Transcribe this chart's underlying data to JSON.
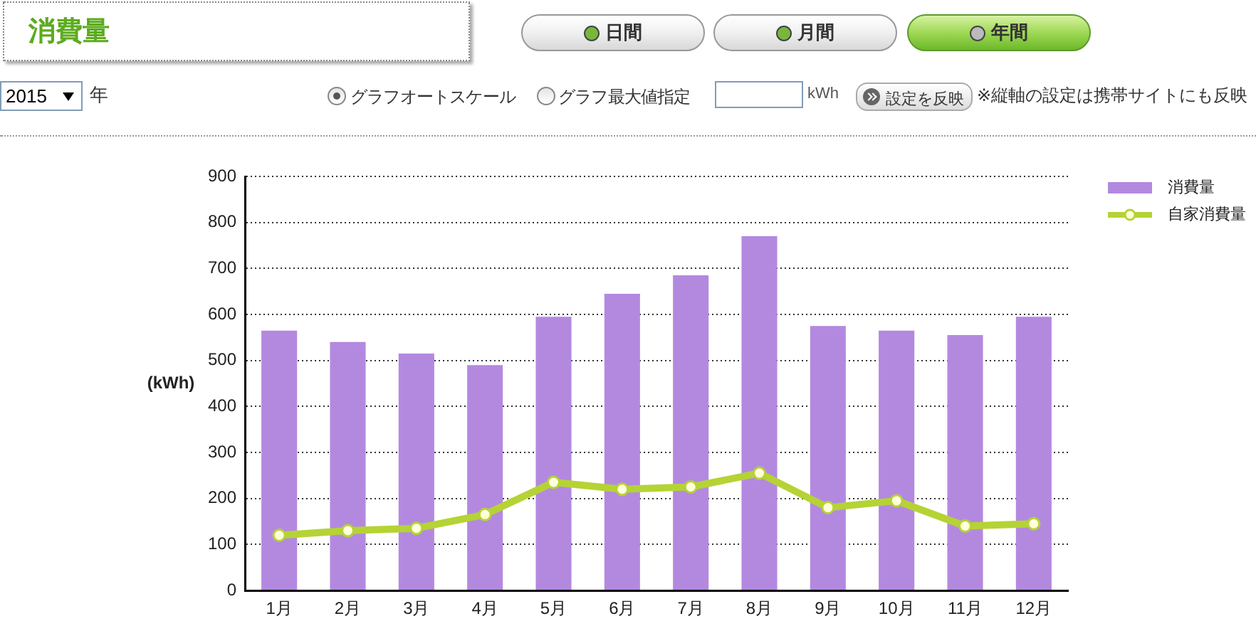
{
  "chart_data": {
    "type": "bar",
    "title": "消費量",
    "ylabel": "(kWh)",
    "categories": [
      "1月",
      "2月",
      "3月",
      "4月",
      "5月",
      "6月",
      "7月",
      "8月",
      "9月",
      "10月",
      "11月",
      "12月"
    ],
    "series": [
      {
        "name": "消費量",
        "color": "#b389e0",
        "values": [
          565,
          540,
          515,
          490,
          595,
          645,
          685,
          770,
          575,
          565,
          555,
          595
        ]
      },
      {
        "name": "自家消費量",
        "type": "line",
        "color": "#b5d334",
        "values": [
          120,
          130,
          135,
          165,
          235,
          220,
          225,
          255,
          180,
          195,
          140,
          145
        ]
      }
    ],
    "ylim": [
      0,
      900
    ],
    "yticks": [
      0,
      100,
      200,
      300,
      400,
      500,
      600,
      700,
      800,
      900
    ],
    "grid": "y",
    "legend": "top right",
    "marker": "circle",
    "line_style": "solid",
    "annotations": [
      "日間",
      "月間",
      "年間",
      "2015",
      "年",
      "グラフオートスケール",
      "グラフ最大値指定",
      "kWh",
      "設定を反映",
      "※縦軸の設定は携帯サイトにも反映"
    ]
  }
}
